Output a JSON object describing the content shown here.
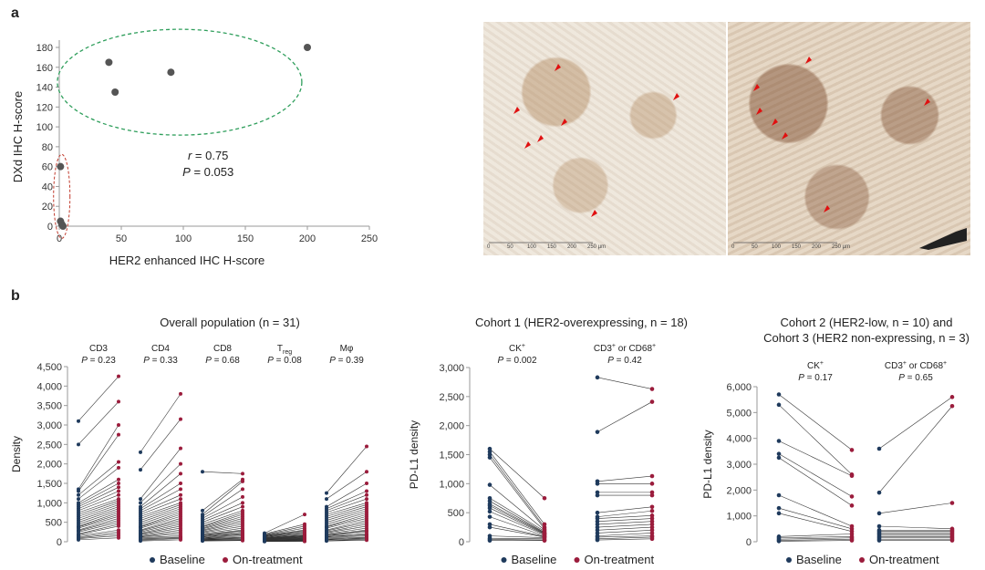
{
  "panel_labels": {
    "a": "a",
    "b": "b"
  },
  "colors": {
    "baseline": "#1f3a5c",
    "on_treatment": "#9b1c3c",
    "scatter_point": "#555555",
    "green_ellipse": "#2e9e5b",
    "red_ellipse": "#c0392b"
  },
  "scatter": {
    "xlabel": "HER2 enhanced IHC H-score",
    "ylabel": "DXd IHC H-score",
    "xticks": [
      "0",
      "50",
      "100",
      "150",
      "200",
      "250"
    ],
    "yticks": [
      "0",
      "20",
      "40",
      "60",
      "80",
      "100",
      "120",
      "140",
      "160",
      "180"
    ],
    "r_label": "r",
    "r_value": "= 0.75",
    "p_label": "P",
    "p_value": "= 0.053",
    "points": [
      {
        "x": 40,
        "y": 165
      },
      {
        "x": 45,
        "y": 135
      },
      {
        "x": 90,
        "y": 155
      },
      {
        "x": 200,
        "y": 180
      },
      {
        "x": 1,
        "y": 60
      },
      {
        "x": 1,
        "y": 5
      },
      {
        "x": 2,
        "y": 2
      },
      {
        "x": 3,
        "y": 0
      }
    ]
  },
  "micrographs": {
    "scale_labels": [
      "0",
      "50",
      "100",
      "150",
      "200",
      "250 µm"
    ]
  },
  "legend": {
    "baseline": "Baseline",
    "on_treatment": "On-treatment"
  },
  "chart_data": [
    {
      "type": "scatter",
      "title": "",
      "xlabel": "HER2 enhanced IHC H-score",
      "ylabel": "DXd IHC H-score",
      "xlim": [
        0,
        250
      ],
      "ylim": [
        0,
        180
      ],
      "x": [
        40,
        45,
        90,
        200,
        1,
        1,
        2,
        3
      ],
      "y": [
        165,
        135,
        155,
        180,
        60,
        5,
        2,
        0
      ],
      "annotations": [
        "r = 0.75",
        "P = 0.053"
      ]
    },
    {
      "type": "line",
      "title": "Overall population (n = 31)",
      "ylabel": "Density",
      "ylim": [
        0,
        4500
      ],
      "yticks": [
        "0",
        "500",
        "1,000",
        "1,500",
        "2,000",
        "2,500",
        "3,000",
        "3,500",
        "4,000",
        "4,500"
      ],
      "groups": [
        {
          "name": "CD3",
          "p": "P = 0.23",
          "baseline": [
            3100,
            2500,
            1350,
            1300,
            1200,
            1100,
            1000,
            950,
            900,
            850,
            800,
            750,
            700,
            650,
            600,
            550,
            500,
            450,
            400,
            380,
            350,
            300,
            280,
            250,
            200,
            180,
            150,
            120,
            100,
            80,
            50
          ],
          "on": [
            4250,
            3600,
            3000,
            2750,
            2050,
            1900,
            1600,
            1500,
            1400,
            1300,
            1200,
            1100,
            1050,
            1000,
            950,
            900,
            850,
            800,
            750,
            700,
            650,
            600,
            550,
            500,
            450,
            400,
            300,
            250,
            200,
            150,
            100
          ]
        },
        {
          "name": "CD4",
          "p": "P = 0.33",
          "baseline": [
            2300,
            1850,
            1100,
            1000,
            900,
            850,
            800,
            750,
            700,
            650,
            600,
            550,
            500,
            450,
            400,
            380,
            350,
            300,
            280,
            250,
            220,
            200,
            180,
            150,
            130,
            120,
            100,
            80,
            60,
            40,
            20
          ],
          "on": [
            3800,
            3150,
            2400,
            2000,
            1750,
            1500,
            1350,
            1200,
            1100,
            1000,
            950,
            900,
            850,
            800,
            750,
            700,
            650,
            600,
            550,
            500,
            450,
            400,
            350,
            300,
            250,
            200,
            150,
            120,
            100,
            80,
            50
          ]
        },
        {
          "name": "CD8",
          "p": "P = 0.68",
          "baseline": [
            1800,
            800,
            700,
            650,
            600,
            550,
            500,
            450,
            400,
            380,
            350,
            330,
            300,
            280,
            250,
            230,
            200,
            180,
            160,
            150,
            130,
            120,
            100,
            90,
            80,
            70,
            60,
            50,
            40,
            30,
            20
          ],
          "on": [
            1750,
            1600,
            1550,
            1350,
            1150,
            1000,
            900,
            800,
            750,
            700,
            650,
            600,
            550,
            500,
            450,
            400,
            350,
            300,
            280,
            250,
            220,
            200,
            180,
            150,
            120,
            100,
            80,
            60,
            50,
            40,
            30
          ]
        },
        {
          "name": "Treg",
          "p": "P = 0.08",
          "baseline": [
            220,
            200,
            180,
            170,
            160,
            150,
            140,
            130,
            120,
            110,
            100,
            95,
            90,
            85,
            80,
            75,
            70,
            65,
            60,
            55,
            50,
            45,
            40,
            35,
            30,
            28,
            25,
            20,
            15,
            10,
            5
          ],
          "on": [
            700,
            450,
            400,
            350,
            300,
            280,
            250,
            230,
            200,
            180,
            160,
            150,
            140,
            130,
            120,
            110,
            100,
            90,
            80,
            70,
            60,
            55,
            50,
            45,
            40,
            35,
            30,
            25,
            20,
            15,
            10
          ]
        },
        {
          "name": "Mφ",
          "p": "P = 0.39",
          "baseline": [
            1250,
            1100,
            900,
            850,
            800,
            750,
            700,
            650,
            600,
            550,
            500,
            450,
            400,
            380,
            350,
            300,
            280,
            250,
            230,
            200,
            180,
            160,
            150,
            130,
            120,
            100,
            80,
            60,
            50,
            30,
            20
          ],
          "on": [
            2450,
            1800,
            1500,
            1300,
            1200,
            1100,
            1000,
            950,
            900,
            850,
            800,
            750,
            700,
            650,
            600,
            550,
            500,
            450,
            400,
            350,
            300,
            280,
            250,
            200,
            180,
            150,
            120,
            100,
            80,
            60,
            40
          ]
        }
      ]
    },
    {
      "type": "line",
      "title": "Cohort 1 (HER2-overexpressing, n = 18)",
      "ylabel": "PD-L1 density",
      "ylim": [
        0,
        3000
      ],
      "yticks": [
        "0",
        "500",
        "1,000",
        "1,500",
        "2,000",
        "2,500",
        "3,000"
      ],
      "groups": [
        {
          "name": "CK+",
          "p": "P = 0.002",
          "baseline": [
            1600,
            1550,
            1500,
            1450,
            980,
            750,
            700,
            650,
            620,
            580,
            520,
            430,
            300,
            250,
            100,
            60,
            40,
            20
          ],
          "on": [
            750,
            300,
            250,
            220,
            200,
            180,
            160,
            150,
            140,
            130,
            120,
            100,
            90,
            80,
            70,
            50,
            30,
            20
          ]
        },
        {
          "name": "CD3+ or CD68+",
          "p": "P = 0.42",
          "baseline": [
            2830,
            1890,
            1040,
            1000,
            850,
            800,
            500,
            430,
            400,
            350,
            300,
            250,
            200,
            150,
            100,
            80,
            50,
            30
          ],
          "on": [
            2630,
            2410,
            1130,
            1000,
            850,
            800,
            600,
            530,
            450,
            400,
            350,
            300,
            250,
            200,
            150,
            100,
            80,
            50
          ]
        }
      ]
    },
    {
      "type": "line",
      "title": "Cohort 2 (HER2-low, n = 10) and Cohort 3 (HER2 non-expressing, n = 3)",
      "ylabel": "PD-L1 density",
      "ylim": [
        0,
        6000
      ],
      "yticks": [
        "0",
        "1,000",
        "2,000",
        "3,000",
        "4,000",
        "5,000",
        "6,000"
      ],
      "groups": [
        {
          "name": "CK+",
          "p": "P = 0.17",
          "baseline": [
            5700,
            5300,
            3900,
            3400,
            3250,
            1800,
            1300,
            1100,
            200,
            150,
            100,
            50,
            20
          ],
          "on": [
            3550,
            2600,
            2550,
            1750,
            1400,
            600,
            500,
            400,
            300,
            200,
            150,
            100,
            50
          ]
        },
        {
          "name": "CD3+ or CD68+",
          "p": "P = 0.65",
          "baseline": [
            3600,
            1900,
            1100,
            600,
            450,
            400,
            350,
            300,
            250,
            200,
            150,
            100,
            50
          ],
          "on": [
            5600,
            5250,
            1500,
            500,
            450,
            400,
            350,
            300,
            250,
            200,
            150,
            100,
            50
          ]
        }
      ]
    }
  ]
}
